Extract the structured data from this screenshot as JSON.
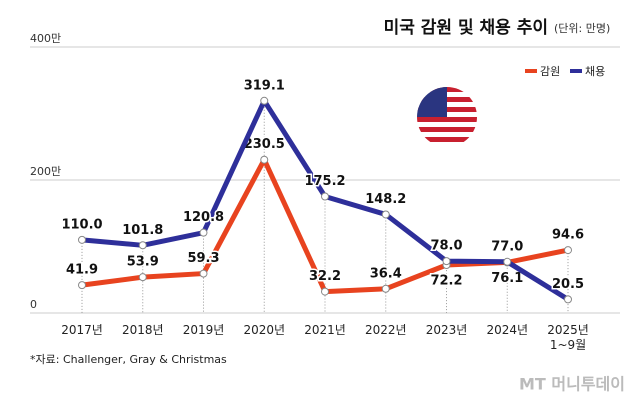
{
  "chart_data": {
    "type": "line",
    "title": "미국 감원 및 채용 추이",
    "subtitle": "(단위: 만명)",
    "categories": [
      "2017년",
      "2018년",
      "2019년",
      "2020년",
      "2021년",
      "2022년",
      "2023년",
      "2024년",
      "2025년\n1~9월"
    ],
    "series": [
      {
        "name": "감원",
        "color": "#e8431f",
        "values": [
          41.9,
          53.9,
          59.3,
          230.5,
          32.2,
          36.4,
          72.2,
          76.1,
          94.6
        ],
        "value_labels": [
          "41.9",
          "53.9",
          "59.3",
          "230.5",
          "32.2",
          "36.4",
          "72.2",
          "76.1",
          "94.6"
        ]
      },
      {
        "name": "채용",
        "color": "#2e2f9a",
        "values": [
          110.0,
          101.8,
          120.8,
          319.1,
          175.2,
          148.2,
          78.0,
          77.0,
          20.5
        ],
        "value_labels": [
          "110.0",
          "101.8",
          "120.8",
          "319.1",
          "175.2",
          "148.2",
          "78.0",
          "77.0",
          "20.5"
        ]
      }
    ],
    "ylim": [
      0,
      400
    ],
    "yticks": [
      0,
      {
        "value": 200,
        "label": "200만"
      },
      {
        "value": 400,
        "label": "400만"
      }
    ],
    "grid": true,
    "legend": "top-right",
    "source": "*자료: Challenger, Gray & Christmas",
    "watermark": "MT 머니투데이"
  }
}
